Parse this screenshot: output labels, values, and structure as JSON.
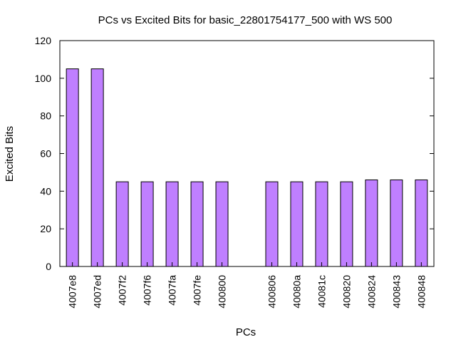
{
  "chart_data": {
    "type": "bar",
    "title": "PCs vs Excited Bits for basic_22801754177_500 with WS 500",
    "xlabel": "PCs",
    "ylabel": "Excited Bits",
    "ylim": [
      0,
      120
    ],
    "yticks": [
      0,
      20,
      40,
      60,
      80,
      100,
      120
    ],
    "grid": false,
    "legend": "none",
    "bar_color": "#bf7fff",
    "categories": [
      "4007e8",
      "4007ed",
      "4007f2",
      "4007f6",
      "4007fa",
      "4007fe",
      "400800",
      "",
      "400806",
      "40080a",
      "40081c",
      "400820",
      "400824",
      "400843",
      "400848"
    ],
    "values": [
      105,
      105,
      45,
      45,
      45,
      45,
      45,
      null,
      45,
      45,
      45,
      45,
      46,
      46,
      46
    ]
  }
}
